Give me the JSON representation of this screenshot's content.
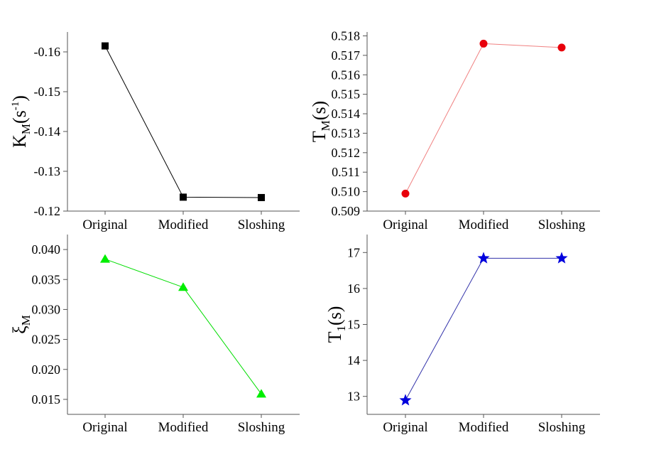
{
  "chart_data": [
    {
      "id": "km",
      "type": "line",
      "categories": [
        "Original",
        "Modified",
        "Sloshing"
      ],
      "values": [
        -0.1615,
        -0.1235,
        -0.1234
      ],
      "ylabel": {
        "main": "K",
        "sub": "M",
        "rest": "(s",
        "sup": "-1",
        "close": ")"
      },
      "ylim": [
        -0.12,
        -0.165
      ],
      "yticks": [
        -0.16,
        -0.15,
        -0.14,
        -0.13,
        -0.12
      ],
      "ytick_labels": [
        "-0.16",
        "-0.15",
        "-0.14",
        "-0.13",
        "-0.12"
      ],
      "marker": "square",
      "color": "#000000",
      "line_color": "#000000"
    },
    {
      "id": "tm",
      "type": "line",
      "categories": [
        "Original",
        "Modified",
        "Sloshing"
      ],
      "values": [
        0.5099,
        0.5176,
        0.5174
      ],
      "ylabel": {
        "main": "T",
        "sub": "M",
        "rest": "(s)"
      },
      "ylim": [
        0.509,
        0.5182
      ],
      "yticks": [
        0.509,
        0.51,
        0.511,
        0.512,
        0.513,
        0.514,
        0.515,
        0.516,
        0.517,
        0.518
      ],
      "ytick_labels": [
        "0.509",
        "0.510",
        "0.511",
        "0.512",
        "0.513",
        "0.514",
        "0.515",
        "0.516",
        "0.517",
        "0.518"
      ],
      "marker": "circle",
      "color": "#e8000b",
      "line_color": "#f08080"
    },
    {
      "id": "xi",
      "type": "line",
      "categories": [
        "Original",
        "Modified",
        "Sloshing"
      ],
      "values": [
        0.0384,
        0.0337,
        0.0159
      ],
      "ylabel": {
        "main": "ξ",
        "sub": "M",
        "rest": ""
      },
      "ylim": [
        0.0125,
        0.0425
      ],
      "yticks": [
        0.015,
        0.02,
        0.025,
        0.03,
        0.035,
        0.04
      ],
      "ytick_labels": [
        "0.015",
        "0.020",
        "0.025",
        "0.030",
        "0.035",
        "0.040"
      ],
      "marker": "triangle",
      "color": "#00ee00",
      "line_color": "#00dd00"
    },
    {
      "id": "t1",
      "type": "line",
      "categories": [
        "Original",
        "Modified",
        "Sloshing"
      ],
      "values": [
        12.89,
        16.84,
        16.84
      ],
      "ylabel": {
        "main": "T",
        "sub": "1",
        "rest": "(s)"
      },
      "ylim": [
        12.5,
        17.5
      ],
      "yticks": [
        13,
        14,
        15,
        16,
        17
      ],
      "ytick_labels": [
        "13",
        "14",
        "15",
        "16",
        "17"
      ],
      "marker": "star",
      "color": "#0000dd",
      "line_color": "#3333aa"
    }
  ]
}
